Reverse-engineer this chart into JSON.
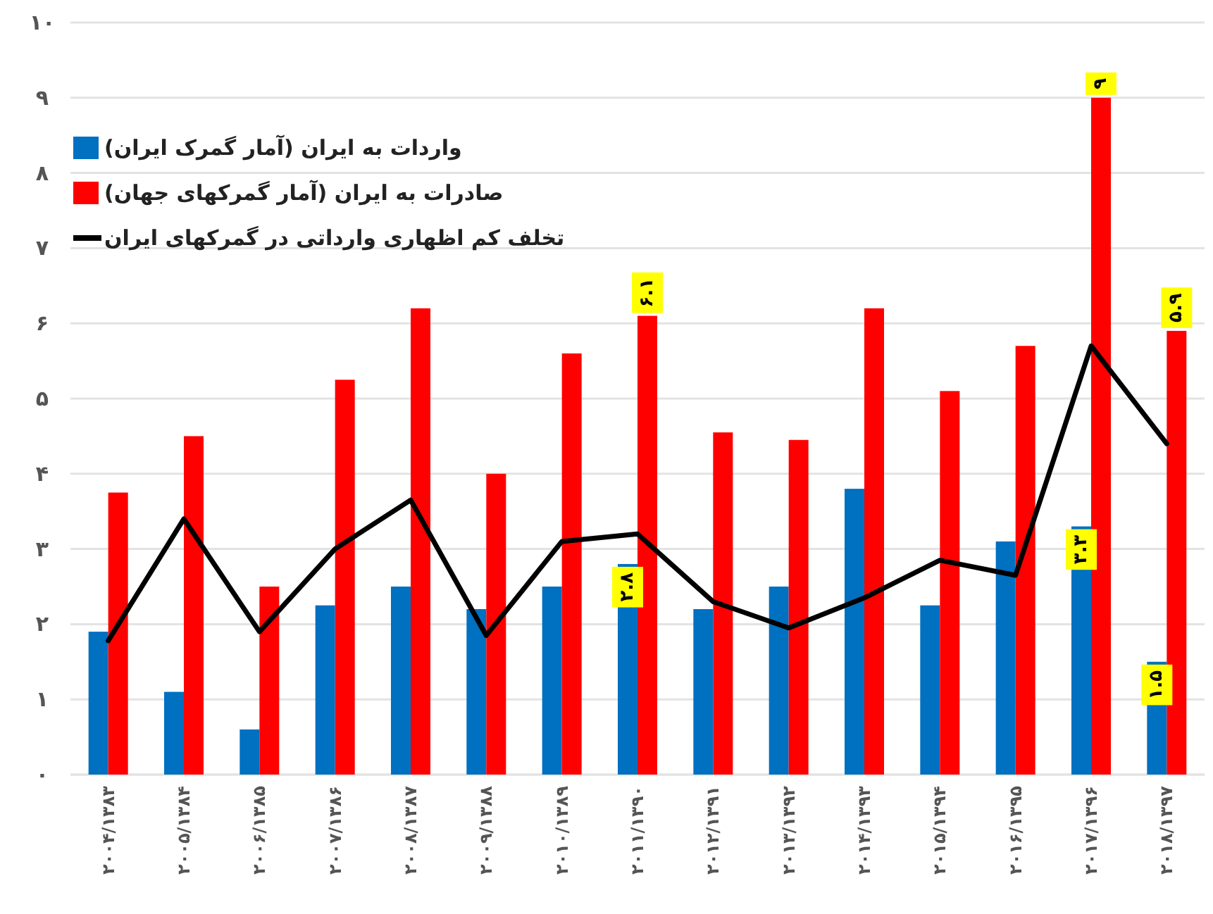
{
  "chart_data": {
    "type": "bar",
    "categories": [
      "۲۰۰۴/۱۳۸۳",
      "۲۰۰۵/۱۳۸۴",
      "۲۰۰۶/۱۳۸۵",
      "۲۰۰۷/۱۳۸۶",
      "۲۰۰۸/۱۳۸۷",
      "۲۰۰۹/۱۳۸۸",
      "۲۰۱۰/۱۳۸۹",
      "۲۰۱۱/۱۳۹۰",
      "۲۰۱۲/۱۳۹۱",
      "۲۰۱۳/۱۳۹۲",
      "۲۰۱۴/۱۳۹۳",
      "۲۰۱۵/۱۳۹۴",
      "۲۰۱۶/۱۳۹۵",
      "۲۰۱۷/۱۳۹۶",
      "۲۰۱۸/۱۳۹۷"
    ],
    "series": [
      {
        "name": "واردات به ایران (آمار گمرک ایران)",
        "color": "#0070c0",
        "values": [
          1.9,
          1.1,
          0.6,
          2.25,
          2.5,
          2.2,
          2.5,
          2.8,
          2.2,
          2.5,
          3.8,
          2.25,
          3.1,
          3.3,
          1.5
        ],
        "value_labels": [
          null,
          null,
          null,
          null,
          null,
          null,
          null,
          "۲.۸",
          null,
          null,
          null,
          null,
          null,
          "۳.۳",
          "۱.۵"
        ]
      },
      {
        "name": "صادرات به ایران (آمار گمرکهای جهان)",
        "color": "#ff0000",
        "values": [
          3.75,
          4.5,
          2.5,
          5.25,
          6.2,
          4.0,
          5.6,
          6.1,
          4.55,
          4.45,
          6.2,
          5.1,
          5.7,
          9,
          5.9
        ],
        "value_labels": [
          null,
          null,
          null,
          null,
          null,
          null,
          null,
          "۶.۱",
          null,
          null,
          null,
          null,
          null,
          "۹",
          "۵.۹"
        ]
      },
      {
        "name": "تخلف کم اظهاری وارداتی در گمرکهای ایران",
        "type": "line",
        "color": "#000000",
        "values": [
          1.78,
          3.4,
          1.9,
          3.0,
          3.65,
          1.85,
          3.1,
          3.2,
          2.3,
          1.95,
          2.35,
          2.85,
          2.65,
          5.7,
          4.4
        ]
      }
    ],
    "ylim": [
      0,
      10
    ],
    "yticks": [
      {
        "value": 0,
        "label": "۰"
      },
      {
        "value": 1,
        "label": "۱"
      },
      {
        "value": 2,
        "label": "۲"
      },
      {
        "value": 3,
        "label": "۳"
      },
      {
        "value": 4,
        "label": "۴"
      },
      {
        "value": 5,
        "label": "۵"
      },
      {
        "value": 6,
        "label": "۶"
      },
      {
        "value": 7,
        "label": "۷"
      },
      {
        "value": 8,
        "label": "۸"
      },
      {
        "value": 9,
        "label": "۹"
      },
      {
        "value": 10,
        "label": "۱۰"
      }
    ],
    "grid": "y",
    "legend": "top left"
  }
}
